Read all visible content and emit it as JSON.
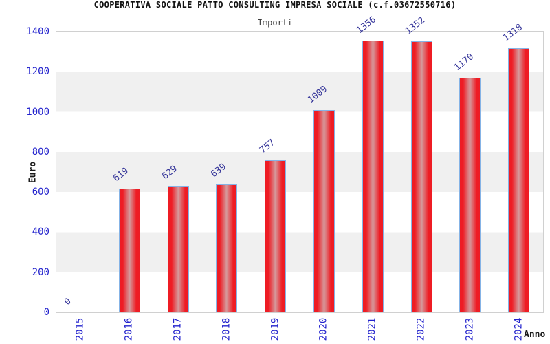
{
  "chart_data": {
    "type": "bar",
    "title": "COOPERATIVA SOCIALE PATTO CONSULTING IMPRESA SOCIALE (c.f.03672550716)",
    "subtitle": "Importi",
    "xlabel": "Anno",
    "ylabel": "Euro",
    "categories": [
      "2015",
      "2016",
      "2017",
      "2018",
      "2019",
      "2020",
      "2021",
      "2022",
      "2023",
      "2024"
    ],
    "values": [
      0,
      619,
      629,
      639,
      757,
      1009,
      1356,
      1352,
      1170,
      1318
    ],
    "ylim": [
      0,
      1400
    ],
    "yticks": [
      0,
      200,
      400,
      600,
      800,
      1000,
      1200,
      1400
    ],
    "grid": "alternating-horizontal-bands",
    "legend": "none",
    "colors": {
      "bar_edge": "#ee1c24",
      "bar_center": "#d59a9c",
      "bar_border": "#85b3e6",
      "axis_tick_label": "#2323cd",
      "value_label": "#343499",
      "band_gray": "#f0f0f0",
      "plot_border": "#d0d0d0",
      "title_text": "#111111",
      "subtitle_text": "#3c3c3c"
    }
  }
}
